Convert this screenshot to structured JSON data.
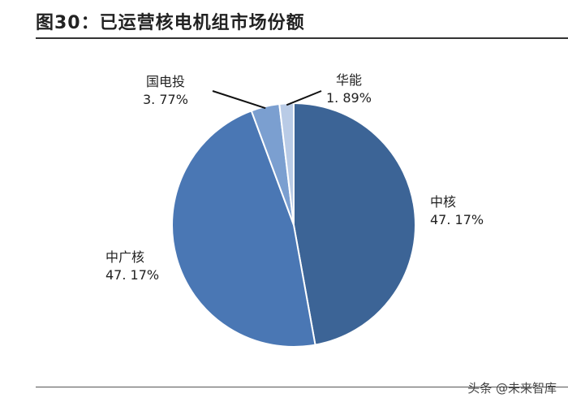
{
  "figure": {
    "title": "图30：已运营核电机组市场份额"
  },
  "watermark": "头条 @未来智库",
  "chart_data": {
    "type": "pie",
    "slices": [
      {
        "name": "中核",
        "value": 47.17,
        "label": "47. 17%",
        "color": "#3c6496"
      },
      {
        "name": "中广核",
        "value": 47.17,
        "label": "47. 17%",
        "color": "#4a77b4"
      },
      {
        "name": "国电投",
        "value": 3.77,
        "label": "3. 77%",
        "color": "#7b9fd0"
      },
      {
        "name": "华能",
        "value": 1.89,
        "label": "1. 89%",
        "color": "#b9cbe6"
      }
    ],
    "start_angle_deg": 0,
    "direction": "clockwise",
    "legend": "none",
    "labels": "outside"
  }
}
